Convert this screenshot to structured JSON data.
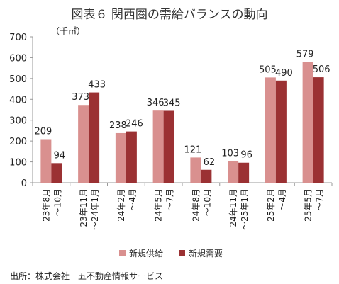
{
  "title": "図表６ 関西圏の需給バランスの動向",
  "source": "出所：株式会社一五不動産情報サービス",
  "chart_data": {
    "type": "bar",
    "title": "図表６ 関西圏の需給バランスの動向",
    "ylabel": "（千㎡）",
    "xlabel": "",
    "ylim": [
      0,
      700
    ],
    "yticks": [
      0,
      100,
      200,
      300,
      400,
      500,
      600,
      700
    ],
    "grid": false,
    "legend_position": "bottom",
    "categories": [
      [
        "23年8月",
        "～10月"
      ],
      [
        "23年11月",
        "～24年1月"
      ],
      [
        "24年2月",
        "～4月"
      ],
      [
        "24年5月",
        "～7月"
      ],
      [
        "24年8月",
        "～10月"
      ],
      [
        "24年11月",
        "～25年1月"
      ],
      [
        "25年2月",
        "～4月"
      ],
      [
        "25年5月",
        "～7月"
      ]
    ],
    "series": [
      {
        "name": "新規供給",
        "color": "#d9908f",
        "values": [
          209,
          373,
          238,
          346,
          121,
          103,
          505,
          579
        ]
      },
      {
        "name": "新規需要",
        "color": "#9b3133",
        "values": [
          94,
          433,
          246,
          345,
          62,
          96,
          490,
          506
        ]
      }
    ]
  }
}
